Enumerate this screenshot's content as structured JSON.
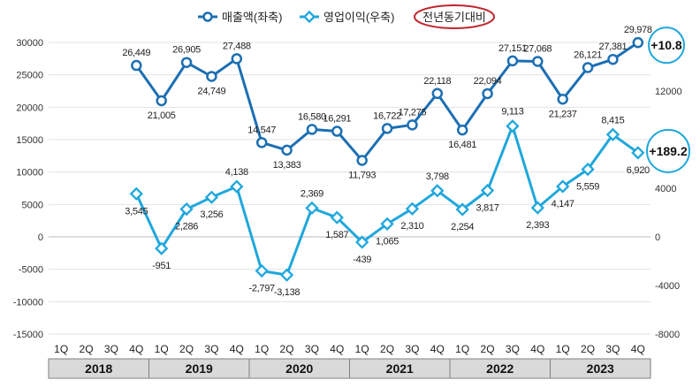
{
  "chart_data": {
    "type": "line",
    "legend": {
      "series1": "매출액(좌축)",
      "series2": "영업이익(우축)",
      "note": "전년동기대비"
    },
    "categories": [
      "1Q",
      "2Q",
      "3Q",
      "4Q",
      "1Q",
      "2Q",
      "3Q",
      "4Q",
      "1Q",
      "2Q",
      "3Q",
      "4Q",
      "1Q",
      "2Q",
      "3Q",
      "4Q",
      "1Q",
      "2Q",
      "3Q",
      "4Q",
      "1Q",
      "2Q",
      "3Q",
      "4Q"
    ],
    "years": [
      "2018",
      "2019",
      "2020",
      "2021",
      "2022",
      "2023"
    ],
    "left_axis": {
      "min": -15000,
      "max": 30000,
      "step": 5000,
      "ticks": [
        "-15000",
        "-10000",
        "-5000",
        "0",
        "5000",
        "10000",
        "15000",
        "20000",
        "25000",
        "30000"
      ]
    },
    "right_axis": {
      "min": -8000,
      "max": 16000,
      "ticks": [
        "-8000",
        "-4000",
        "0",
        "4000",
        "12000"
      ],
      "tick_values": [
        -8000,
        -4000,
        0,
        4000,
        12000
      ]
    },
    "series": [
      {
        "name": "매출액(좌축)",
        "axis": "left",
        "color": "#1c6fb3",
        "values": [
          null,
          null,
          null,
          26449,
          21005,
          26905,
          24749,
          27488,
          14547,
          13383,
          16580,
          16291,
          11793,
          16722,
          17275,
          22118,
          16481,
          22094,
          27151,
          27068,
          21237,
          26121,
          27381,
          29978
        ],
        "labels": [
          "",
          "",
          "",
          "26,449",
          "21,005",
          "26,905",
          "24,749",
          "27,488",
          "14,547",
          "13,383",
          "16,580",
          "16,291",
          "11,793",
          "16,722",
          "17,275",
          "22,118",
          "16,481",
          "22,094",
          "27,151",
          "27,068",
          "21,237",
          "26,121",
          "27,381",
          "29,978"
        ]
      },
      {
        "name": "영업이익(우축)",
        "axis": "right",
        "color": "#1fa7dc",
        "values": [
          null,
          null,
          null,
          3545,
          -951,
          2286,
          3256,
          4138,
          -2797,
          -3138,
          2369,
          1587,
          -439,
          1065,
          2310,
          3798,
          2254,
          3817,
          9113,
          2393,
          4147,
          5559,
          8415,
          6920
        ],
        "labels": [
          "",
          "",
          "",
          "3,545",
          "-951",
          "2,286",
          "3,256",
          "4,138",
          "-2,797",
          "-3,138",
          "2,369",
          "1,587",
          "-439",
          "1,065",
          "2,310",
          "3,798",
          "2,254",
          "3,817",
          "9,113",
          "2,393",
          "4,147",
          "5,559",
          "8,415",
          "6,920"
        ]
      }
    ],
    "callouts": [
      {
        "series": "매출액(좌축)",
        "text": "+10.8"
      },
      {
        "series": "영업이익(우축)",
        "text": "+189.2"
      }
    ]
  }
}
